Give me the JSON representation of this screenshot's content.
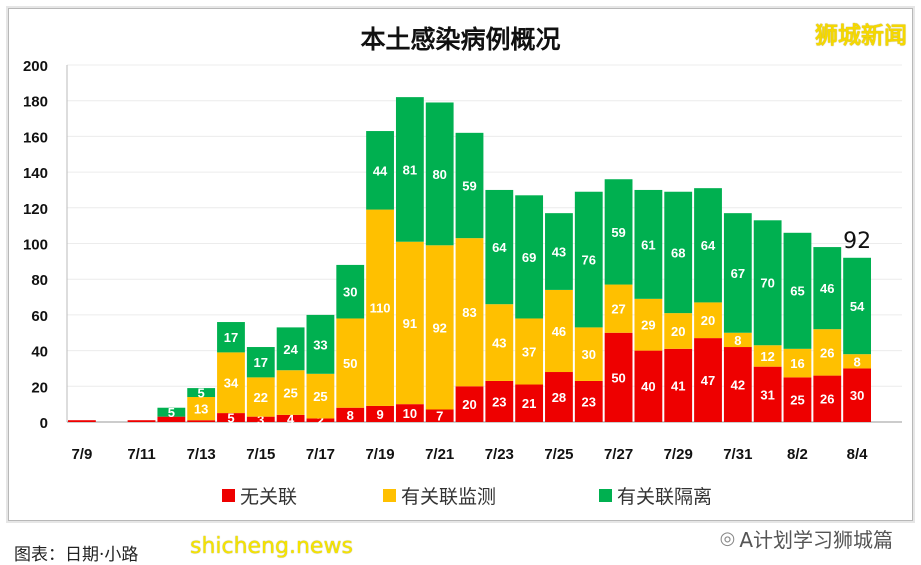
{
  "brand": "狮城新闻",
  "caption": "图表：日期·小路",
  "watermark": "shicheng.news",
  "wechat_account": "A计划学习狮城篇",
  "wechat_icon": "wechat-icon",
  "chart_data": {
    "type": "bar",
    "stacked": true,
    "title": "本土感染病例概况",
    "xlabel": "",
    "ylabel": "",
    "ylim": [
      0,
      200
    ],
    "yticks": [
      0,
      20,
      40,
      60,
      80,
      100,
      120,
      140,
      160,
      180,
      200
    ],
    "grid": true,
    "legend_position": "bottom",
    "categories": [
      "7/9",
      "7/10",
      "7/11",
      "7/12",
      "7/13",
      "7/14",
      "7/15",
      "7/16",
      "7/17",
      "7/18",
      "7/19",
      "7/20",
      "7/21",
      "7/22",
      "7/23",
      "7/24",
      "7/25",
      "7/26",
      "7/27",
      "7/28",
      "7/29",
      "7/30",
      "7/31",
      "8/1",
      "8/2",
      "8/3",
      "8/4"
    ],
    "xtick_labels": [
      "7/9",
      "7/11",
      "7/13",
      "7/15",
      "7/17",
      "7/19",
      "7/21",
      "7/23",
      "7/25",
      "7/27",
      "7/29",
      "7/31",
      "8/2",
      "8/4"
    ],
    "series": [
      {
        "name": "无关联",
        "color": "#ee0000",
        "values": [
          1,
          0,
          1,
          3,
          1,
          5,
          3,
          4,
          2,
          8,
          9,
          10,
          7,
          20,
          23,
          21,
          28,
          23,
          50,
          40,
          41,
          47,
          42,
          31,
          25,
          26,
          30
        ]
      },
      {
        "name": "有关联监测",
        "color": "#ffc000",
        "values": [
          0,
          0,
          0,
          0,
          13,
          34,
          22,
          25,
          25,
          50,
          110,
          91,
          92,
          83,
          43,
          37,
          46,
          30,
          27,
          29,
          20,
          20,
          8,
          12,
          16,
          26,
          8
        ]
      },
      {
        "name": "有关联隔离",
        "color": "#00b050",
        "values": [
          0,
          0,
          0,
          5,
          5,
          17,
          17,
          24,
          33,
          30,
          44,
          81,
          80,
          59,
          64,
          69,
          43,
          76,
          59,
          61,
          68,
          64,
          67,
          70,
          65,
          46,
          54
        ]
      }
    ],
    "annotations": [
      {
        "category": "8/4",
        "text": "92"
      }
    ]
  }
}
